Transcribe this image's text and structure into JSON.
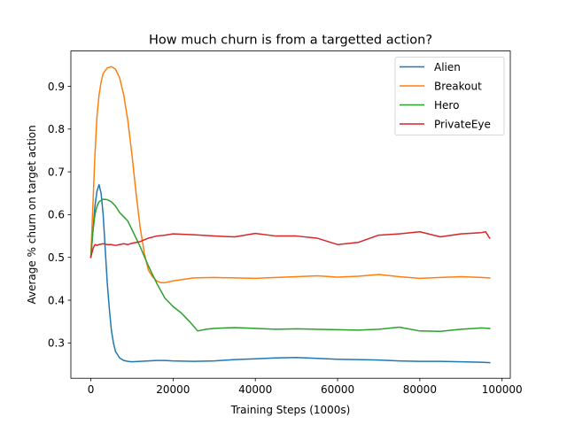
{
  "chart_data": {
    "type": "line",
    "title": "How much churn is from a targetted action?",
    "xlabel": "Training Steps (1000s)",
    "ylabel": "Average % churn on target action",
    "xlim": [
      -4850,
      102000
    ],
    "ylim": [
      0.2175,
      0.9825
    ],
    "xticks": [
      0,
      20000,
      40000,
      60000,
      80000,
      100000
    ],
    "xtick_labels": [
      "0",
      "20000",
      "40000",
      "60000",
      "80000",
      "100000"
    ],
    "yticks": [
      0.3,
      0.4,
      0.5,
      0.6,
      0.7,
      0.8,
      0.9
    ],
    "ytick_labels": [
      "0.3",
      "0.4",
      "0.5",
      "0.6",
      "0.7",
      "0.8",
      "0.9"
    ],
    "grid": false,
    "legend_position": "top-right",
    "series": [
      {
        "name": "Alien",
        "color": "#1f77b4",
        "x": [
          0,
          500,
          1000,
          1500,
          2000,
          2500,
          3000,
          3500,
          4000,
          4500,
          5000,
          5500,
          6000,
          7000,
          8000,
          9000,
          10000,
          12000,
          14000,
          16000,
          18000,
          20000,
          25000,
          30000,
          35000,
          40000,
          45000,
          50000,
          55000,
          60000,
          65000,
          70000,
          75000,
          80000,
          85000,
          90000,
          95000,
          97000
        ],
        "y": [
          0.5,
          0.56,
          0.62,
          0.655,
          0.67,
          0.65,
          0.6,
          0.52,
          0.44,
          0.38,
          0.33,
          0.3,
          0.28,
          0.265,
          0.259,
          0.257,
          0.256,
          0.257,
          0.258,
          0.259,
          0.259,
          0.258,
          0.257,
          0.258,
          0.261,
          0.263,
          0.265,
          0.266,
          0.264,
          0.262,
          0.261,
          0.26,
          0.258,
          0.257,
          0.257,
          0.256,
          0.255,
          0.254
        ]
      },
      {
        "name": "Breakout",
        "color": "#ff7f0e",
        "x": [
          0,
          500,
          1000,
          1500,
          2000,
          2500,
          3000,
          4000,
          5000,
          6000,
          7000,
          8000,
          9000,
          10000,
          11000,
          12000,
          13000,
          14000,
          15000,
          16000,
          17000,
          18000,
          20000,
          25000,
          30000,
          35000,
          40000,
          45000,
          50000,
          55000,
          60000,
          65000,
          70000,
          75000,
          80000,
          85000,
          90000,
          95000,
          97000
        ],
        "y": [
          0.5,
          0.62,
          0.74,
          0.83,
          0.88,
          0.91,
          0.93,
          0.943,
          0.946,
          0.94,
          0.92,
          0.88,
          0.82,
          0.74,
          0.65,
          0.57,
          0.51,
          0.47,
          0.455,
          0.445,
          0.441,
          0.441,
          0.445,
          0.452,
          0.453,
          0.452,
          0.451,
          0.453,
          0.455,
          0.457,
          0.454,
          0.456,
          0.46,
          0.455,
          0.451,
          0.453,
          0.455,
          0.453,
          0.452
        ]
      },
      {
        "name": "Hero",
        "color": "#2ca02c",
        "x": [
          0,
          500,
          1000,
          1500,
          2000,
          3000,
          4000,
          5000,
          6000,
          7000,
          8000,
          9000,
          10000,
          12000,
          14000,
          16000,
          18000,
          20000,
          22000,
          24000,
          26000,
          28000,
          30000,
          35000,
          40000,
          45000,
          50000,
          55000,
          60000,
          65000,
          70000,
          75000,
          80000,
          85000,
          90000,
          95000,
          97000
        ],
        "y": [
          0.5,
          0.56,
          0.6,
          0.62,
          0.63,
          0.636,
          0.635,
          0.63,
          0.62,
          0.605,
          0.595,
          0.585,
          0.565,
          0.525,
          0.48,
          0.44,
          0.405,
          0.385,
          0.37,
          0.35,
          0.328,
          0.332,
          0.334,
          0.336,
          0.334,
          0.332,
          0.333,
          0.332,
          0.331,
          0.33,
          0.332,
          0.337,
          0.328,
          0.327,
          0.332,
          0.335,
          0.334
        ]
      },
      {
        "name": "PrivateEye",
        "color": "#d62728",
        "x": [
          0,
          500,
          1000,
          1500,
          2000,
          3000,
          4000,
          5000,
          6000,
          7000,
          8000,
          9000,
          10000,
          12000,
          14000,
          16000,
          18000,
          20000,
          25000,
          30000,
          35000,
          40000,
          45000,
          50000,
          55000,
          60000,
          65000,
          70000,
          75000,
          80000,
          85000,
          90000,
          95000,
          96000,
          97000
        ],
        "y": [
          0.5,
          0.52,
          0.53,
          0.528,
          0.53,
          0.532,
          0.53,
          0.53,
          0.528,
          0.53,
          0.532,
          0.53,
          0.533,
          0.537,
          0.545,
          0.55,
          0.552,
          0.555,
          0.553,
          0.55,
          0.548,
          0.556,
          0.55,
          0.55,
          0.545,
          0.53,
          0.535,
          0.552,
          0.555,
          0.56,
          0.548,
          0.555,
          0.558,
          0.56,
          0.545
        ]
      }
    ]
  }
}
